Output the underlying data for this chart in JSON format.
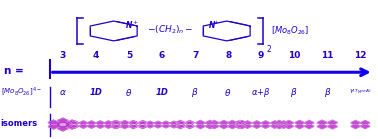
{
  "bg_color": "#ffffff",
  "blue": "#2200cc",
  "purple": "#aa22cc",
  "magenta": "#bb33cc",
  "n_values": [
    "3",
    "4",
    "5",
    "6",
    "7",
    "8",
    "9",
    "10",
    "11",
    "12"
  ],
  "isomer_labels": [
    "α",
    "1D",
    "θ",
    "1D",
    "β",
    "θ",
    "α+β",
    "β",
    "β",
    "γ"
  ],
  "arrow_color": "#1100ee",
  "figsize": [
    3.78,
    1.39
  ],
  "dpi": 100
}
